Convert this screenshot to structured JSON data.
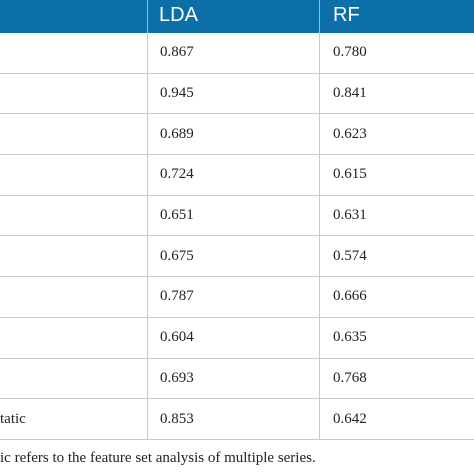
{
  "table": {
    "headers": [
      "LDA",
      "RF"
    ],
    "rows": [
      {
        "label": "",
        "lda": "0.867",
        "rf": "0.780"
      },
      {
        "label": "",
        "lda": "0.945",
        "rf": "0.841"
      },
      {
        "label": "",
        "lda": "0.689",
        "rf": "0.623"
      },
      {
        "label": "",
        "lda": "0.724",
        "rf": "0.615"
      },
      {
        "label": "",
        "lda": "0.651",
        "rf": "0.631"
      },
      {
        "label": "",
        "lda": "0.675",
        "rf": "0.574"
      },
      {
        "label": "",
        "lda": "0.787",
        "rf": "0.666"
      },
      {
        "label": "",
        "lda": "0.604",
        "rf": "0.635"
      },
      {
        "label": "",
        "lda": "0.693",
        "rf": "0.768"
      },
      {
        "label": "tatic",
        "lda": "0.853",
        "rf": "0.642"
      }
    ]
  },
  "footnote": "ic refers to the feature set analysis of multiple series.",
  "colors": {
    "header_bg": "#0c6fa8",
    "header_text": "#ffffff",
    "grid": "#c9c9c9"
  }
}
